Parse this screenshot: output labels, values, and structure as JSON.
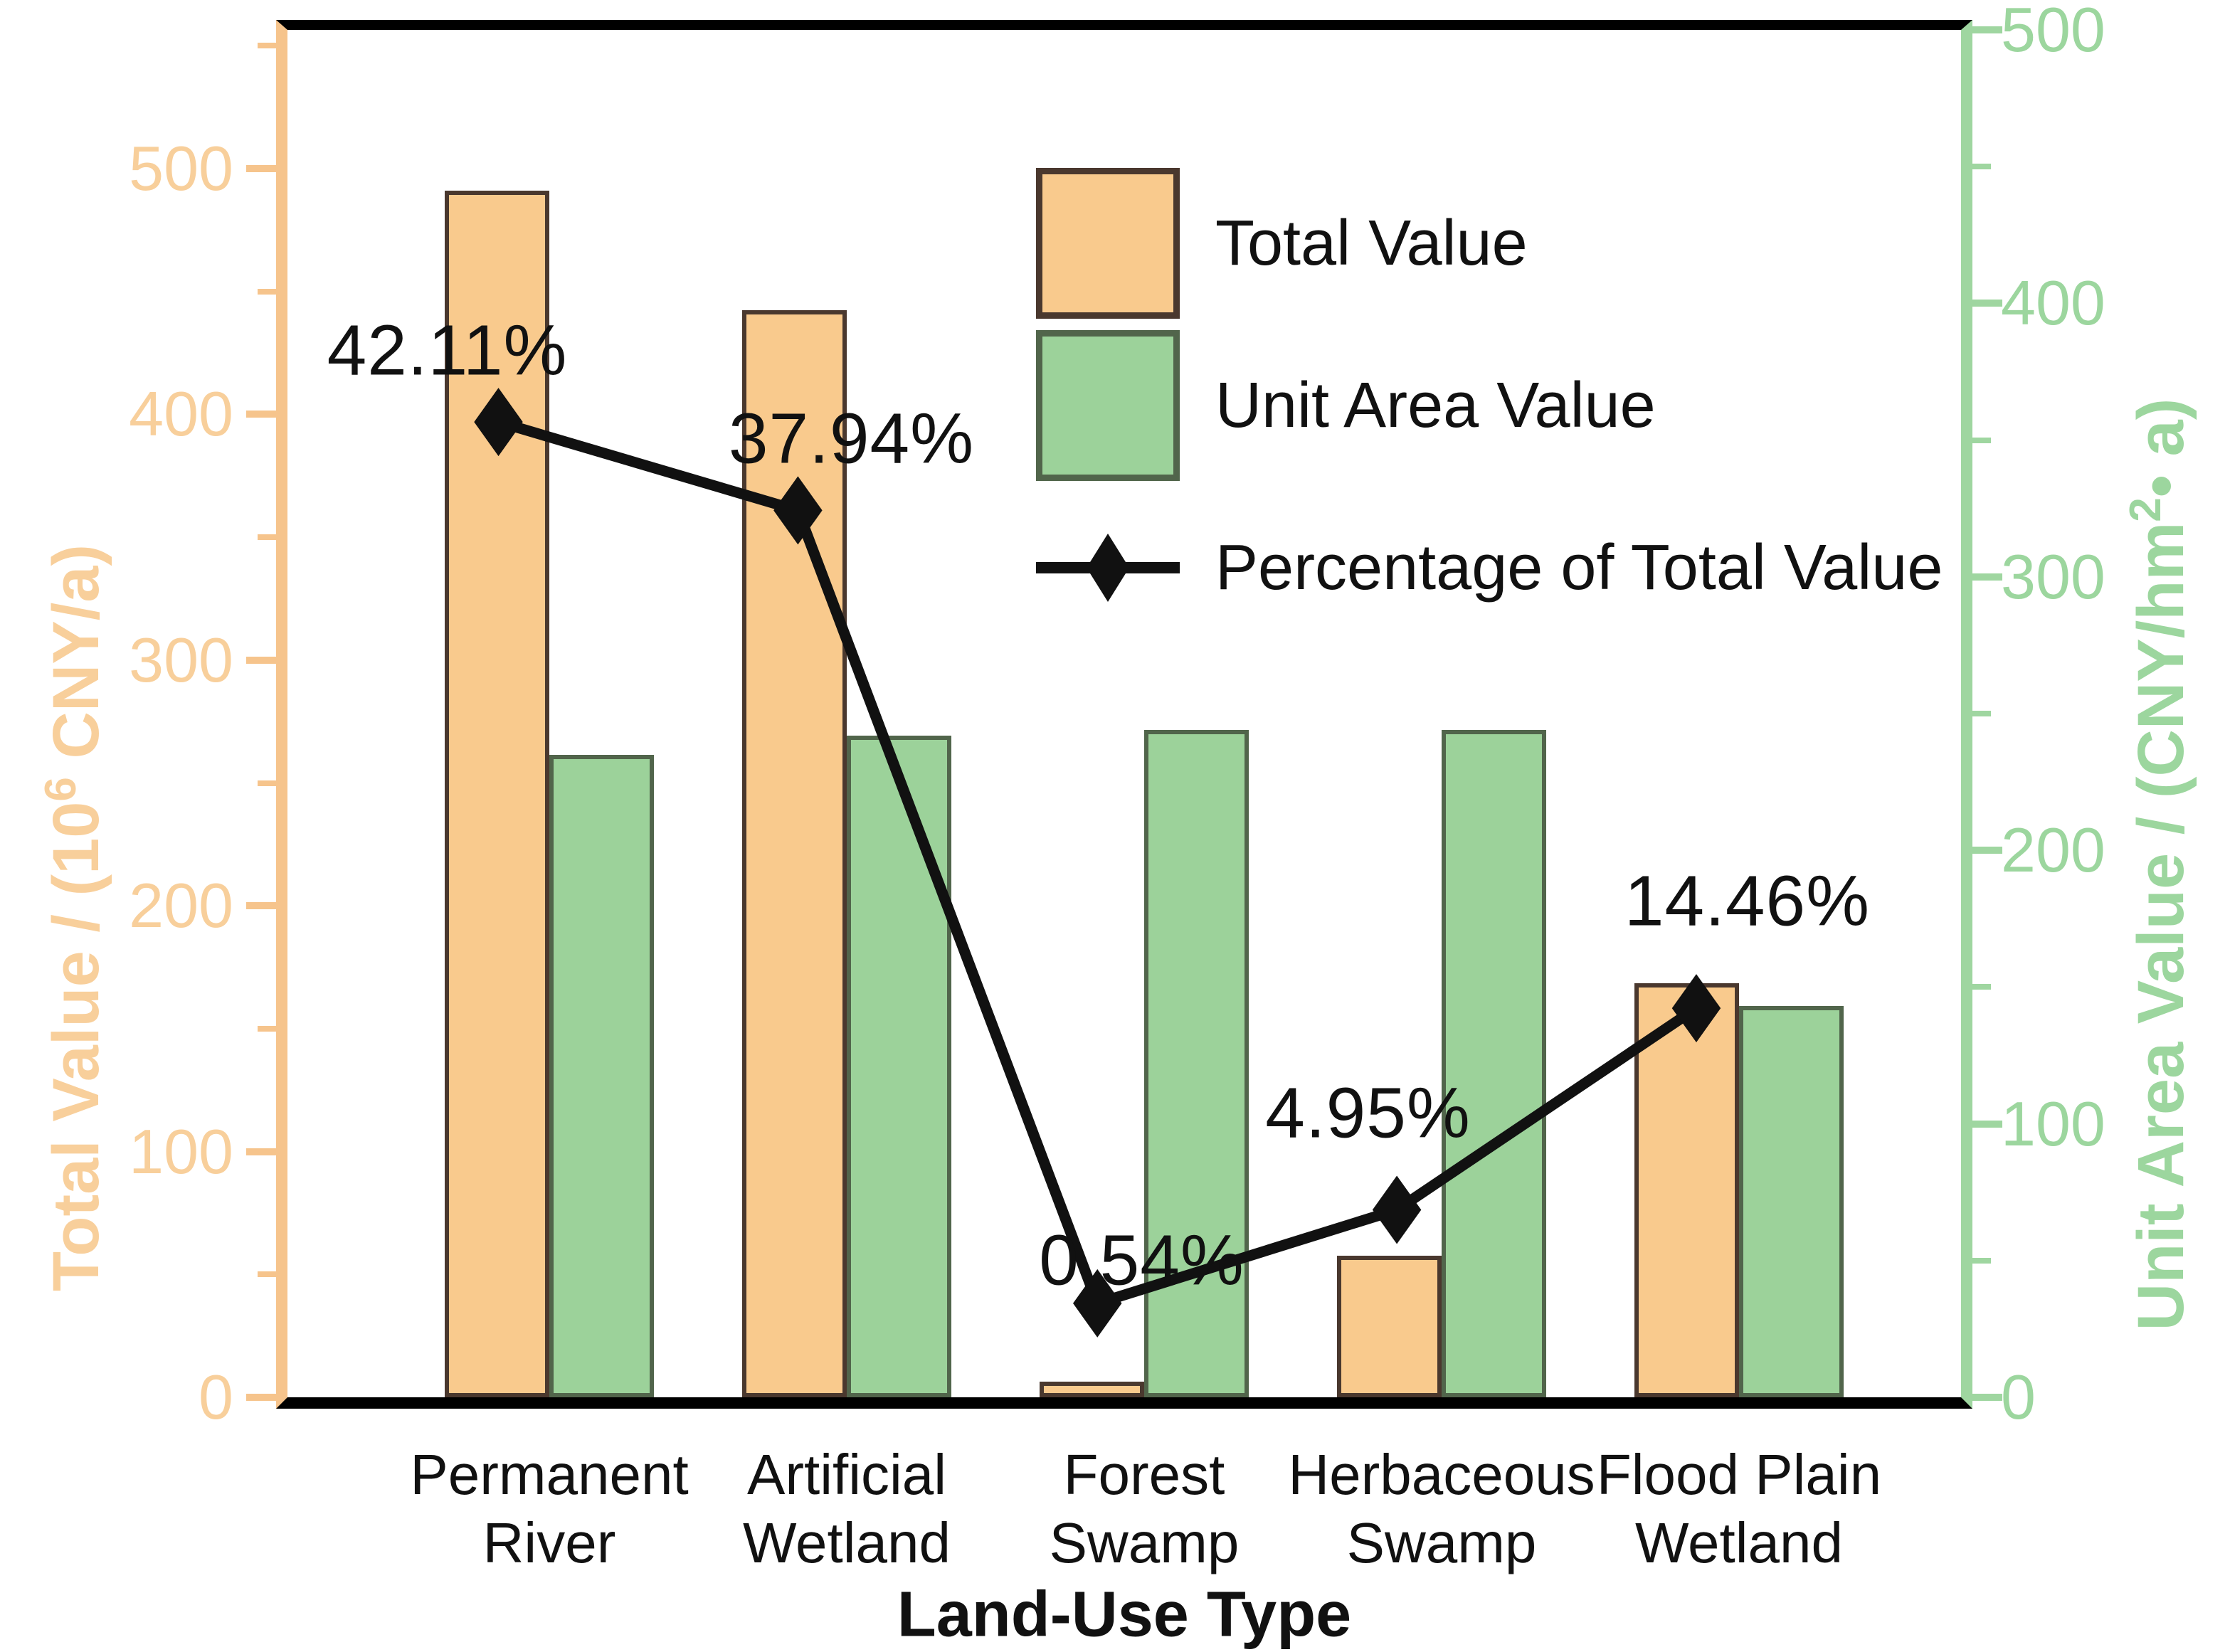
{
  "figure": {
    "background": "#ffffff",
    "colors": {
      "total_value_fill": "#F9CA8D",
      "total_value_border": "#4A382E",
      "unit_area_fill": "#9CD29A",
      "unit_area_border": "#51654B",
      "left_axis": "#F6C48C",
      "left_axis_text": "#F8CF9B",
      "right_axis": "#9FD6A0",
      "right_axis_text": "#9CD69E",
      "percentage_line": "#111111",
      "frame": "#000000"
    }
  },
  "chart_data": {
    "type": "bar+line",
    "categories": [
      "Permanent\nRiver",
      "Artificial\nWetland",
      "Forest\nSwamp",
      "Herbaceous\nSwamp",
      "Flood Plain\nWetland"
    ],
    "series": [
      {
        "name": "Total Value",
        "type": "bar",
        "axis": "left",
        "color": "#F9CA8D",
        "values": [
          491,
          442.5,
          6.3,
          57.7,
          168.6
        ]
      },
      {
        "name": "Unit Area Value",
        "type": "bar",
        "axis": "right",
        "color": "#9CD29A",
        "values": [
          235,
          242,
          244,
          244,
          143
        ]
      },
      {
        "name": "Percentage of Total Value",
        "type": "line",
        "axis": "hidden-percent",
        "color": "#111111",
        "marker": "diamond",
        "values": [
          42.11,
          37.94,
          0.54,
          4.95,
          14.46
        ],
        "labels": [
          "42.11%",
          "37.94%",
          "0.54%",
          "4.95%",
          "14.46%"
        ]
      }
    ],
    "left_axis": {
      "title_pre": "Total Value / (10",
      "title_sup": "6",
      "title_post": " CNY/a)",
      "ticks": [
        0,
        100,
        200,
        300,
        400,
        500
      ],
      "minor_ticks": [
        50,
        150,
        250,
        350,
        450,
        550
      ],
      "range": [
        0,
        556
      ]
    },
    "right_axis": {
      "title_pre": "Unit Area Value / (CNY/hm",
      "title_sup": "2",
      "title_post": "• a)",
      "ticks": [
        0,
        100,
        200,
        300,
        400,
        500
      ],
      "minor_ticks": [
        50,
        150,
        250,
        350,
        450
      ],
      "range": [
        0,
        500
      ]
    },
    "x_axis": {
      "title": "Land-Use Type"
    },
    "legend": {
      "position": "top-right-inside",
      "entries": [
        "Total Value",
        "Unit Area Value",
        "Percentage of Total Value"
      ]
    }
  }
}
